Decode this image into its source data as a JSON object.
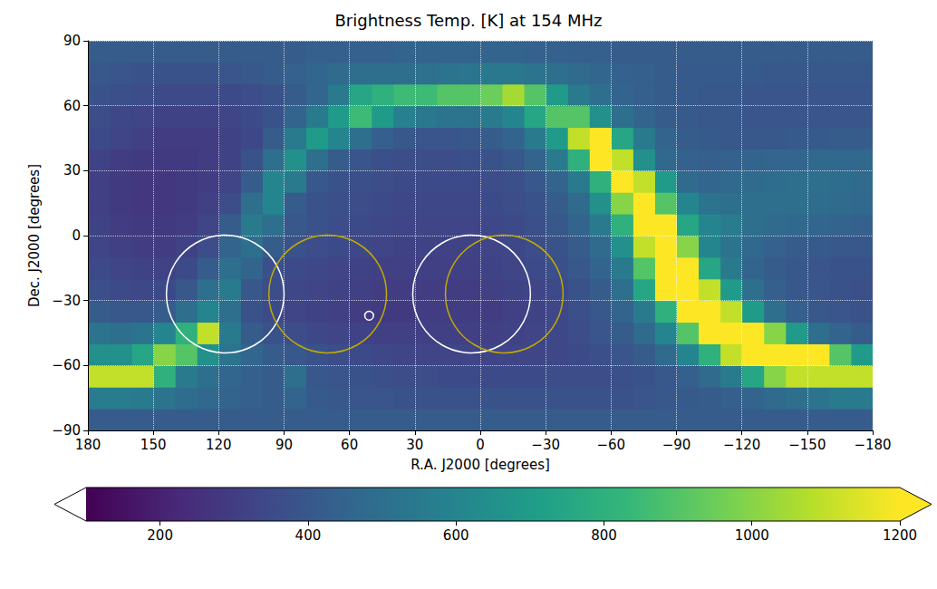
{
  "chart_data": {
    "type": "heatmap",
    "title": "Brightness Temp. [K] at 154 MHz",
    "x_label": "R.A. J2000 [degrees]",
    "y_label": "Dec. J2000 [degrees]",
    "xlim": [
      180,
      -180
    ],
    "xticks": [
      180,
      150,
      120,
      90,
      60,
      30,
      0,
      {
        "value": -30,
        "label": "−30"
      },
      {
        "value": -60,
        "label": "−60"
      },
      {
        "value": -90,
        "label": "−90"
      },
      {
        "value": -120,
        "label": "−120"
      },
      {
        "value": -150,
        "label": "−150"
      },
      {
        "value": -180,
        "label": "−180"
      }
    ],
    "ylim": [
      -90,
      90
    ],
    "yticks": [
      {
        "value": -90,
        "label": "−90"
      },
      {
        "value": -60,
        "label": "−60"
      },
      {
        "value": -30,
        "label": "−30"
      },
      0,
      30,
      60,
      90
    ],
    "grid": true,
    "x": [
      -175,
      -165,
      -155,
      -145,
      -135,
      -125,
      -115,
      -105,
      -95,
      -85,
      -75,
      -65,
      -55,
      -45,
      -35,
      -25,
      -15,
      -5,
      5,
      15,
      25,
      35,
      45,
      55,
      65,
      75,
      85,
      95,
      105,
      115,
      125,
      135,
      145,
      155,
      165,
      175
    ],
    "y": [
      -85,
      -75,
      -65,
      -55,
      -45,
      -35,
      -25,
      -15,
      -5,
      5,
      15,
      25,
      35,
      45,
      55,
      65,
      75,
      85
    ],
    "cells": [
      [
        420,
        420,
        420,
        420,
        420,
        420,
        420,
        420,
        420,
        420,
        420,
        420,
        420,
        420,
        420,
        420,
        420,
        420,
        420,
        420,
        420,
        420,
        420,
        420,
        420,
        420,
        420,
        420,
        420,
        420,
        420,
        420,
        420,
        420,
        420,
        420
      ],
      [
        550,
        550,
        520,
        500,
        480,
        450,
        430,
        420,
        410,
        400,
        390,
        380,
        380,
        380,
        380,
        380,
        380,
        380,
        380,
        380,
        380,
        380,
        390,
        390,
        400,
        410,
        450,
        420,
        430,
        450,
        470,
        490,
        520,
        550,
        560,
        560
      ],
      [
        1100,
        1100,
        1100,
        1100,
        1000,
        750,
        550,
        480,
        430,
        400,
        380,
        370,
        360,
        360,
        360,
        350,
        350,
        350,
        350,
        350,
        360,
        360,
        370,
        380,
        390,
        400,
        500,
        420,
        430,
        460,
        500,
        550,
        800,
        1100,
        1100,
        1100
      ],
      [
        700,
        900,
        1200,
        1200,
        1200,
        1200,
        1100,
        800,
        600,
        480,
        420,
        390,
        370,
        350,
        340,
        330,
        330,
        330,
        330,
        330,
        330,
        330,
        340,
        350,
        360,
        380,
        400,
        420,
        460,
        520,
        650,
        900,
        1000,
        750,
        650,
        650
      ],
      [
        420,
        450,
        500,
        700,
        1000,
        1200,
        1200,
        1200,
        900,
        600,
        480,
        420,
        390,
        360,
        340,
        330,
        320,
        310,
        310,
        310,
        310,
        310,
        310,
        320,
        330,
        340,
        360,
        380,
        420,
        550,
        1100,
        800,
        600,
        520,
        500,
        520
      ],
      [
        380,
        390,
        400,
        430,
        500,
        700,
        1100,
        1200,
        1200,
        800,
        550,
        450,
        400,
        370,
        340,
        320,
        310,
        300,
        300,
        300,
        300,
        290,
        290,
        300,
        310,
        320,
        330,
        350,
        380,
        500,
        600,
        500,
        420,
        400,
        400,
        420
      ],
      [
        370,
        380,
        390,
        400,
        430,
        500,
        700,
        1100,
        1200,
        1200,
        750,
        500,
        420,
        380,
        350,
        330,
        320,
        310,
        300,
        300,
        300,
        300,
        300,
        310,
        320,
        330,
        340,
        360,
        400,
        550,
        500,
        400,
        350,
        340,
        350,
        370
      ],
      [
        380,
        380,
        390,
        400,
        420,
        450,
        550,
        750,
        1200,
        1200,
        900,
        550,
        450,
        400,
        370,
        350,
        330,
        320,
        310,
        310,
        310,
        310,
        310,
        320,
        330,
        340,
        350,
        370,
        450,
        500,
        420,
        350,
        320,
        320,
        330,
        350
      ],
      [
        400,
        400,
        410,
        420,
        440,
        470,
        520,
        600,
        1000,
        1200,
        1100,
        650,
        480,
        420,
        380,
        360,
        340,
        330,
        320,
        320,
        320,
        320,
        330,
        340,
        350,
        360,
        380,
        420,
        500,
        450,
        360,
        320,
        300,
        300,
        310,
        330
      ],
      [
        440,
        450,
        460,
        470,
        480,
        500,
        560,
        600,
        750,
        1200,
        1200,
        800,
        550,
        450,
        400,
        370,
        350,
        340,
        330,
        330,
        330,
        330,
        340,
        350,
        360,
        380,
        400,
        500,
        550,
        420,
        330,
        300,
        290,
        290,
        300,
        320
      ],
      [
        470,
        480,
        490,
        500,
        500,
        500,
        500,
        520,
        600,
        900,
        1200,
        1000,
        650,
        480,
        420,
        380,
        360,
        350,
        340,
        340,
        340,
        340,
        350,
        360,
        370,
        380,
        420,
        600,
        500,
        360,
        310,
        290,
        280,
        280,
        290,
        310
      ],
      [
        480,
        490,
        500,
        500,
        490,
        480,
        470,
        460,
        480,
        700,
        1100,
        1200,
        800,
        550,
        450,
        400,
        370,
        360,
        350,
        350,
        350,
        350,
        360,
        370,
        380,
        400,
        550,
        600,
        420,
        330,
        300,
        290,
        280,
        280,
        290,
        310
      ],
      [
        470,
        470,
        470,
        460,
        460,
        450,
        440,
        430,
        440,
        470,
        650,
        1100,
        1200,
        800,
        550,
        450,
        400,
        380,
        370,
        360,
        360,
        360,
        370,
        390,
        420,
        500,
        650,
        500,
        380,
        320,
        300,
        290,
        290,
        290,
        300,
        320
      ],
      [
        420,
        420,
        410,
        410,
        400,
        400,
        400,
        410,
        420,
        450,
        550,
        750,
        1200,
        1100,
        700,
        550,
        450,
        420,
        400,
        390,
        390,
        400,
        430,
        500,
        600,
        700,
        550,
        420,
        340,
        320,
        300,
        300,
        300,
        310,
        330,
        350
      ],
      [
        390,
        390,
        390,
        390,
        390,
        390,
        400,
        400,
        410,
        420,
        450,
        500,
        650,
        900,
        900,
        750,
        600,
        550,
        520,
        520,
        540,
        580,
        700,
        850,
        700,
        550,
        450,
        380,
        350,
        330,
        320,
        320,
        320,
        330,
        340,
        360
      ],
      [
        390,
        390,
        390,
        390,
        390,
        390,
        400,
        400,
        410,
        420,
        430,
        450,
        500,
        550,
        700,
        900,
        1050,
        950,
        900,
        900,
        850,
        850,
        800,
        750,
        550,
        460,
        420,
        380,
        360,
        350,
        350,
        350,
        350,
        360,
        370,
        380
      ],
      [
        400,
        400,
        400,
        400,
        400,
        410,
        410,
        410,
        410,
        420,
        430,
        440,
        460,
        480,
        500,
        520,
        540,
        540,
        530,
        520,
        510,
        500,
        500,
        500,
        480,
        460,
        440,
        420,
        400,
        390,
        380,
        380,
        380,
        380,
        390,
        400
      ],
      [
        420,
        420,
        420,
        420,
        420,
        420,
        420,
        420,
        420,
        420,
        420,
        420,
        430,
        430,
        440,
        440,
        450,
        450,
        450,
        450,
        450,
        450,
        440,
        440,
        430,
        430,
        420,
        420,
        420,
        420,
        420,
        420,
        420,
        420,
        420,
        420
      ]
    ],
    "colorbar_range": [
      100,
      1200
    ],
    "colorbar_ticks": [
      200,
      400,
      600,
      800,
      1000,
      1200
    ],
    "circles": [
      {
        "x": 117,
        "y": -27,
        "radius": 27,
        "color": "#ffffff"
      },
      {
        "x": 70,
        "y": -27,
        "radius": 27,
        "color": "#bfaa00"
      },
      {
        "x": 51,
        "y": -37,
        "radius": 2,
        "color": "#ffffff"
      },
      {
        "x": 4,
        "y": -27,
        "radius": 27,
        "color": "#ffffff"
      },
      {
        "x": -11,
        "y": -27,
        "radius": 27,
        "color": "#bfaa00"
      }
    ]
  }
}
